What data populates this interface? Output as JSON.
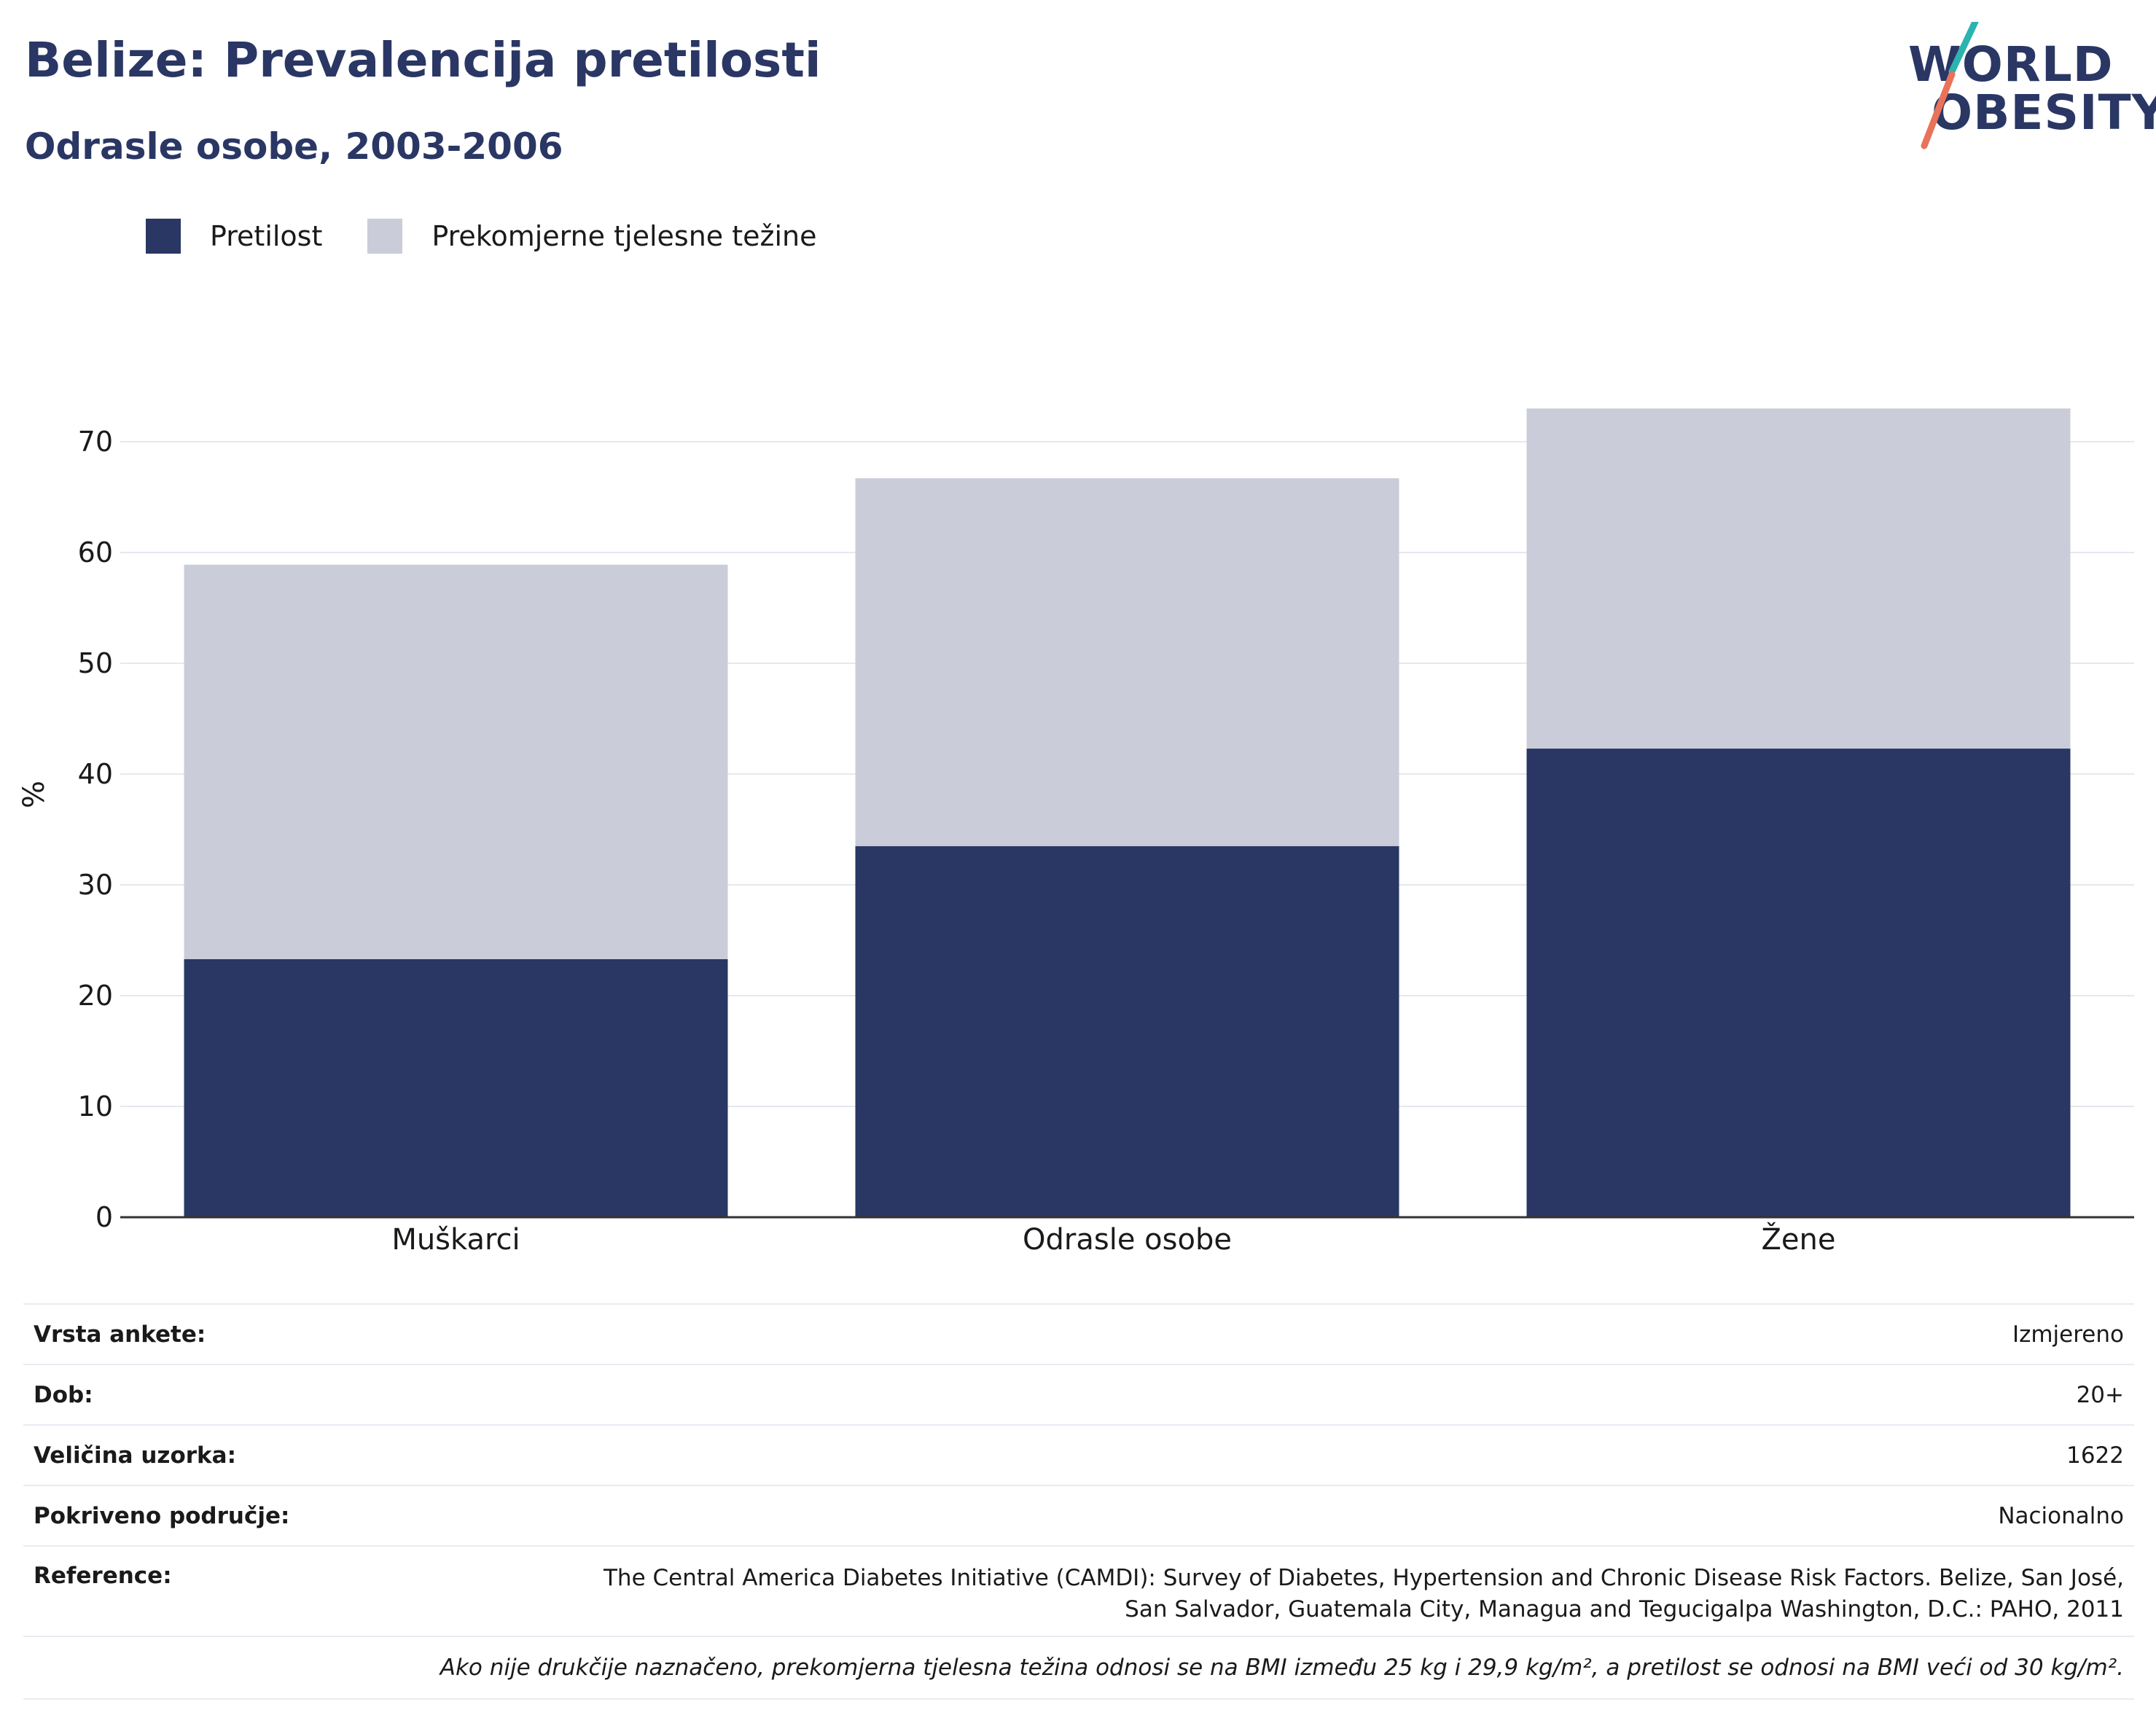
{
  "header": {
    "title": "Belize: Prevalencija pretilosti",
    "subtitle": "Odrasle osobe, 2003-2006"
  },
  "logo": {
    "line1": "WORLD",
    "line2": "OBESITY",
    "accent_colors": [
      "#2bb3b0",
      "#e8735a"
    ]
  },
  "legend": {
    "items": [
      {
        "label": "Pretilost",
        "color": "#2a3764"
      },
      {
        "label": "Prekomjerne tjelesne težine",
        "color": "#cacdd9"
      }
    ]
  },
  "chart_data": {
    "type": "bar",
    "stacked": true,
    "categories": [
      "Muškarci",
      "Odrasle osobe",
      "Žene"
    ],
    "series": [
      {
        "name": "Pretilost",
        "values": [
          23.3,
          33.5,
          42.3
        ],
        "color": "#2a3764"
      },
      {
        "name": "Prekomjerne tjelesne težine",
        "values": [
          35.6,
          33.2,
          30.7
        ],
        "color": "#cacdd9"
      }
    ],
    "ylabel": "%",
    "ylim": [
      0,
      75
    ],
    "yticks": [
      0,
      10,
      20,
      30,
      40,
      50,
      60,
      70
    ],
    "grid": true,
    "legend_position": "top-left"
  },
  "info": {
    "survey_type_label": "Vrsta ankete:",
    "survey_type_value": "Izmjereno",
    "age_label": "Dob:",
    "age_value": "20+",
    "sample_label": "Veličina uzorka:",
    "sample_value": "1622",
    "coverage_label": "Pokriveno područje:",
    "coverage_value": "Nacionalno",
    "reference_label": "Reference:",
    "reference_value_line1": "The Central America Diabetes Initiative (CAMDI): Survey of Diabetes, Hypertension and Chronic Disease Risk Factors. Belize, San José,",
    "reference_value_line2": "San Salvador, Guatemala City, Managua and Tegucigalpa Washington, D.C.: PAHO, 2011",
    "footnote": "Ako nije drukčije naznačeno, prekomjerna tjelesna težina odnosi se na BMI između 25 kg i 29,9 kg/m², a pretilost se odnosi na BMI veći od 30 kg/m²."
  }
}
